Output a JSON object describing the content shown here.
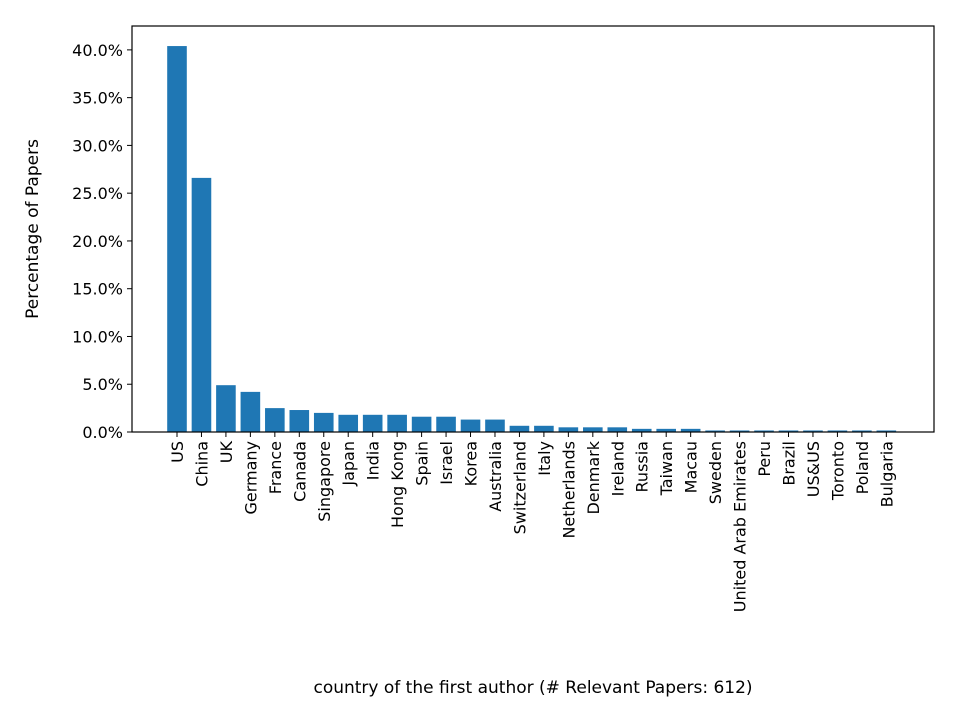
{
  "chart_data": {
    "type": "bar",
    "categories": [
      "US",
      "China",
      "UK",
      "Germany",
      "France",
      "Canada",
      "Singapore",
      "Japan",
      "India",
      "Hong Kong",
      "Spain",
      "Israel",
      "Korea",
      "Australia",
      "Switzerland",
      "Italy",
      "Netherlands",
      "Denmark",
      "Ireland",
      "Russia",
      "Taiwan",
      "Macau",
      "Sweden",
      "United Arab Emirates",
      "Peru",
      "Brazil",
      "US&US",
      "Toronto",
      "Poland",
      "Bulgaria"
    ],
    "values": [
      40.4,
      26.6,
      4.9,
      4.2,
      2.5,
      2.3,
      2.0,
      1.8,
      1.8,
      1.8,
      1.6,
      1.6,
      1.3,
      1.3,
      0.65,
      0.65,
      0.49,
      0.49,
      0.49,
      0.33,
      0.33,
      0.33,
      0.16,
      0.16,
      0.16,
      0.16,
      0.16,
      0.16,
      0.16,
      0.16
    ],
    "xlabel": "country of the first author (# Relevant Papers: 612)",
    "ylabel": "Percentage of Papers",
    "ylim": [
      0,
      42.5
    ],
    "yticks": [
      "0.0%",
      "5.0%",
      "10.0%",
      "15.0%",
      "20.0%",
      "25.0%",
      "30.0%",
      "35.0%",
      "40.0%"
    ],
    "ytick_values": [
      0,
      5,
      10,
      15,
      20,
      25,
      30,
      35,
      40
    ],
    "grid": false,
    "bar_color": "#1f77b4"
  }
}
